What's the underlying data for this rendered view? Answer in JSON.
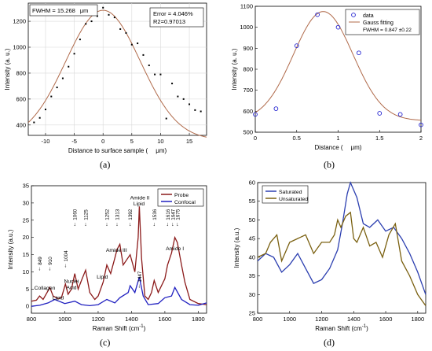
{
  "chart_data": [
    {
      "panel": "(a)",
      "type": "scatter",
      "xlabel": "Distance to surface sample (",
      "xunit": "μm)",
      "ylabel": "Intensity (a. u.)",
      "xlim": [
        -13,
        18
      ],
      "ylim": [
        320,
        1340
      ],
      "xticks": [
        -10,
        -5,
        0,
        5,
        10,
        15
      ],
      "yticks": [
        400,
        600,
        800,
        1000,
        1200
      ],
      "grid": true,
      "annotations": {
        "fwhm": "FWHM = 15.268",
        "fwhm_unit": "μm",
        "error": "Error = 4.046%",
        "r2": "R2=0.97013"
      },
      "fit": {
        "color": "#b06a4a",
        "amplitude": 1000,
        "center": 0.0,
        "fwhm": 15.268,
        "baseline": 285
      },
      "points": {
        "x": [
          -12,
          -11,
          -10,
          -9,
          -8,
          -7,
          -6,
          -5,
          -4,
          -3,
          -2,
          -1,
          0,
          1,
          2,
          3,
          4,
          5,
          6,
          7,
          8,
          9,
          10,
          11,
          12,
          13,
          14,
          15,
          16,
          17
        ],
        "y": [
          420,
          455,
          520,
          620,
          690,
          760,
          850,
          950,
          1060,
          1180,
          1200,
          1240,
          1305,
          1250,
          1230,
          1140,
          1110,
          1020,
          1030,
          940,
          860,
          790,
          790,
          450,
          720,
          620,
          600,
          560,
          515,
          505
        ]
      }
    },
    {
      "panel": "(b)",
      "type": "scatter",
      "xlabel": "Distance (",
      "xunit": "μm)",
      "ylabel": "Intensity (a. u.)",
      "xlim": [
        0,
        2
      ],
      "ylim": [
        500,
        1100
      ],
      "xticks": [
        0,
        0.5,
        1,
        1.5,
        2
      ],
      "yticks": [
        500,
        600,
        700,
        800,
        900,
        1000,
        1100
      ],
      "legend": [
        "data",
        "Gauss fitting"
      ],
      "fwhm_text": "FWHM = 0.847   ±0.22",
      "fit": {
        "color": "#b06a4a",
        "amplitude": 520,
        "center": 0.82,
        "fwhm": 0.847,
        "baseline": 555
      },
      "points": {
        "x": [
          0,
          0.25,
          0.5,
          0.75,
          1.0,
          1.25,
          1.5,
          1.75,
          2.0
        ],
        "y": [
          585,
          612,
          912,
          1060,
          1000,
          878,
          590,
          585,
          535
        ]
      }
    },
    {
      "panel": "(c)",
      "type": "line",
      "xlabel": "Raman Shift (cm",
      "xunit_sup": "-1",
      "xunit_end": ")",
      "ylabel": "Intensity (a.u.)",
      "xlim": [
        800,
        1850
      ],
      "ylim": [
        -2,
        35
      ],
      "xticks": [
        800,
        1000,
        1200,
        1400,
        1600,
        1800
      ],
      "yticks": [
        0,
        5,
        10,
        15,
        20,
        25,
        30,
        35
      ],
      "series": [
        {
          "name": "Probe",
          "color": "#8b1a1a",
          "x": [
            800,
            830,
            849,
            870,
            900,
            910,
            930,
            960,
            980,
            1004,
            1020,
            1040,
            1060,
            1080,
            1100,
            1125,
            1150,
            1180,
            1200,
            1230,
            1252,
            1275,
            1300,
            1313,
            1330,
            1350,
            1392,
            1420,
            1440,
            1447,
            1460,
            1480,
            1500,
            1520,
            1536,
            1560,
            1600,
            1616,
            1640,
            1660,
            1675,
            1700,
            1720,
            1750,
            1800,
            1850
          ],
          "y": [
            1.5,
            1.8,
            3.0,
            2.0,
            4.5,
            5.5,
            3.0,
            2.2,
            2.5,
            6.5,
            3.5,
            5.0,
            9.5,
            5.0,
            7.5,
            10.5,
            4.0,
            2.0,
            3.0,
            7.0,
            12.0,
            9.5,
            14.0,
            16.5,
            18.0,
            12.0,
            15.0,
            10.0,
            20.0,
            29.0,
            14.0,
            3.0,
            2.0,
            4.0,
            7.5,
            4.0,
            8.0,
            12.0,
            15.5,
            20.0,
            18.5,
            12.0,
            7.0,
            2.0,
            0.8,
            0.5
          ]
        },
        {
          "name": "Confocal",
          "color": "#2020c0",
          "x": [
            800,
            850,
            900,
            940,
            1000,
            1060,
            1100,
            1150,
            1200,
            1252,
            1300,
            1330,
            1380,
            1392,
            1420,
            1447,
            1470,
            1500,
            1560,
            1600,
            1640,
            1660,
            1700,
            1750,
            1800,
            1850
          ],
          "y": [
            0.0,
            0.3,
            1.0,
            2.0,
            0.8,
            1.5,
            0.5,
            0.2,
            0.5,
            2.0,
            1.0,
            2.5,
            4.0,
            6.0,
            4.0,
            8.5,
            3.0,
            0.5,
            0.8,
            2.5,
            3.0,
            5.5,
            2.0,
            0.5,
            0.3,
            1.0
          ]
        }
      ],
      "peak_labels": [
        "849",
        "910",
        "1004",
        "1060",
        "1125",
        "1252",
        "1313",
        "1392",
        "1447",
        "1536",
        "1616",
        "1647",
        "1675"
      ],
      "annotations": [
        "Collagen",
        "Lipid",
        "Nuclei",
        "Acid",
        "Amide III",
        "Lipid",
        "Amide II",
        "Lipid",
        "Amide I"
      ]
    },
    {
      "panel": "(d)",
      "type": "line",
      "xlabel": "Raman Shift (cm",
      "xunit_sup": "-1",
      "xunit_end": ")",
      "ylabel": "Intensity (a.u.)",
      "xlim": [
        800,
        1850
      ],
      "ylim": [
        25,
        60
      ],
      "xticks": [
        800,
        1000,
        1200,
        1400,
        1600,
        1800
      ],
      "yticks": [
        25,
        30,
        35,
        40,
        45,
        50,
        55,
        60
      ],
      "series": [
        {
          "name": "Saturated",
          "color": "#2c3fb0",
          "x": [
            800,
            850,
            900,
            950,
            1000,
            1050,
            1100,
            1150,
            1200,
            1250,
            1300,
            1330,
            1360,
            1380,
            1420,
            1460,
            1500,
            1550,
            1600,
            1650,
            1700,
            1750,
            1800,
            1850
          ],
          "y": [
            39,
            41,
            40,
            36,
            38,
            41,
            37,
            33,
            34,
            37,
            42,
            49,
            57,
            60,
            56,
            49,
            48,
            50,
            47,
            48,
            45,
            41,
            36,
            30
          ]
        },
        {
          "name": "Unsaturated",
          "color": "#7a6010",
          "x": [
            800,
            850,
            880,
            920,
            950,
            1000,
            1050,
            1100,
            1150,
            1200,
            1250,
            1280,
            1300,
            1320,
            1350,
            1380,
            1400,
            1420,
            1460,
            1500,
            1540,
            1580,
            1620,
            1660,
            1700,
            1750,
            1800,
            1850
          ],
          "y": [
            40,
            41,
            44,
            46,
            39,
            44,
            45,
            46,
            41,
            44,
            44,
            46,
            50,
            48,
            51,
            52,
            45,
            44,
            48,
            43,
            44,
            40,
            46,
            49,
            39,
            35,
            30,
            27
          ]
        }
      ]
    }
  ],
  "captions": [
    "(a)",
    "(b)",
    "(c)",
    "(d)"
  ]
}
